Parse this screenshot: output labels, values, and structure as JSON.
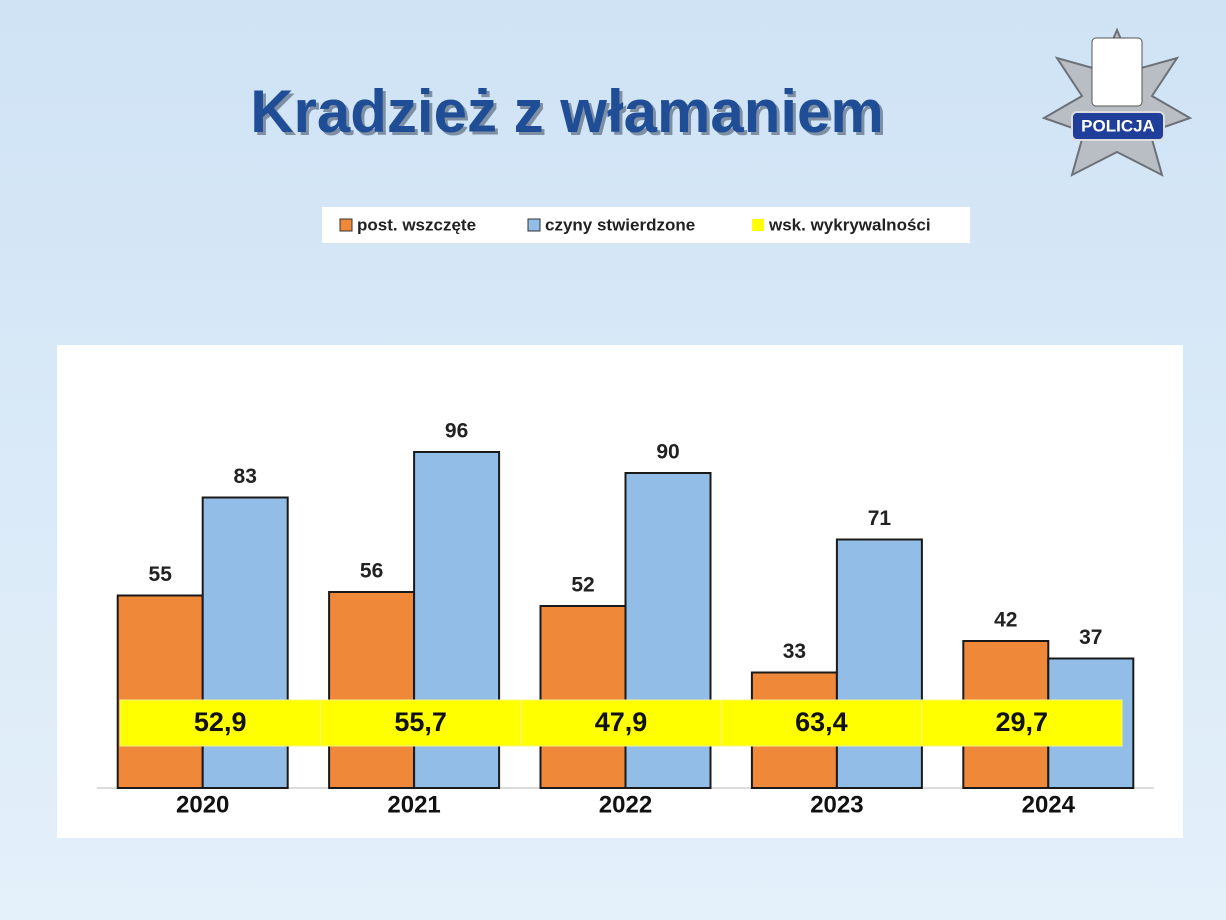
{
  "badge": "POLICJA",
  "chart_data": {
    "type": "bar",
    "title": "Kradzież z włamaniem",
    "categories": [
      "2020",
      "2021",
      "2022",
      "2023",
      "2024"
    ],
    "series": [
      {
        "name": "post. wszczęte",
        "color": "#f0883a",
        "values": [
          55,
          56,
          52,
          33,
          42
        ]
      },
      {
        "name": "czyny stwierdzone",
        "color": "#92bde6",
        "values": [
          83,
          96,
          90,
          71,
          37
        ]
      }
    ],
    "band": {
      "name": "wsk. wykrywalności",
      "color": "#ffff00",
      "values": [
        52.9,
        55.7,
        47.9,
        63.4,
        29.7
      ],
      "value_labels": [
        "52,9",
        "55,7",
        "47,9",
        "63,4",
        "29,7"
      ]
    },
    "ylim": [
      0,
      120
    ]
  }
}
